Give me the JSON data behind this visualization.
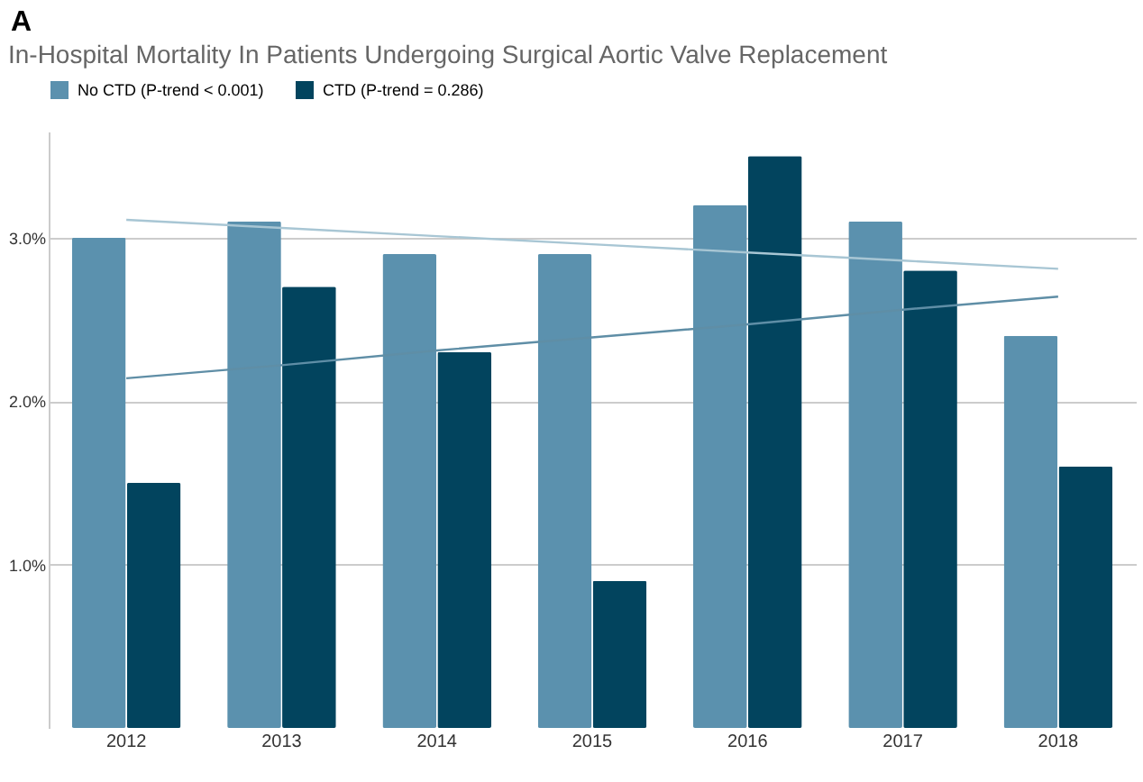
{
  "chart_data": {
    "type": "bar",
    "title": "In-Hospital Mortality In Patients Undergoing Surgical Aortic Valve Replacement",
    "annotations": [
      "A"
    ],
    "categories": [
      "2012",
      "2013",
      "2014",
      "2015",
      "2016",
      "2017",
      "2018"
    ],
    "series": [
      {
        "name": "No CTD (P-trend < 0.001)",
        "color": "#5b91ae",
        "values": [
          3.0,
          3.1,
          2.9,
          2.9,
          3.2,
          3.1,
          2.4
        ]
      },
      {
        "name": "CTD (P-trend = 0.286)",
        "color": "#02445e",
        "values": [
          1.5,
          2.7,
          2.3,
          0.9,
          3.5,
          2.8,
          1.6
        ]
      },
      {
        "type": "line",
        "color": "#a8c6d4",
        "values": [
          3.11,
          3.06,
          3.01,
          2.96,
          2.91,
          2.86,
          2.81
        ]
      },
      {
        "type": "line",
        "color": "#5f8ea6",
        "values": [
          2.14,
          2.22,
          2.31,
          2.39,
          2.47,
          2.56,
          2.64
        ]
      }
    ],
    "ylim": [
      0,
      3.65
    ],
    "yticks": [
      {
        "value": 1,
        "label": "1.0%"
      },
      {
        "value": 2,
        "label": "2.0%"
      },
      {
        "value": 3,
        "label": "3.0%"
      }
    ],
    "grid": "y",
    "legend": "top left"
  }
}
